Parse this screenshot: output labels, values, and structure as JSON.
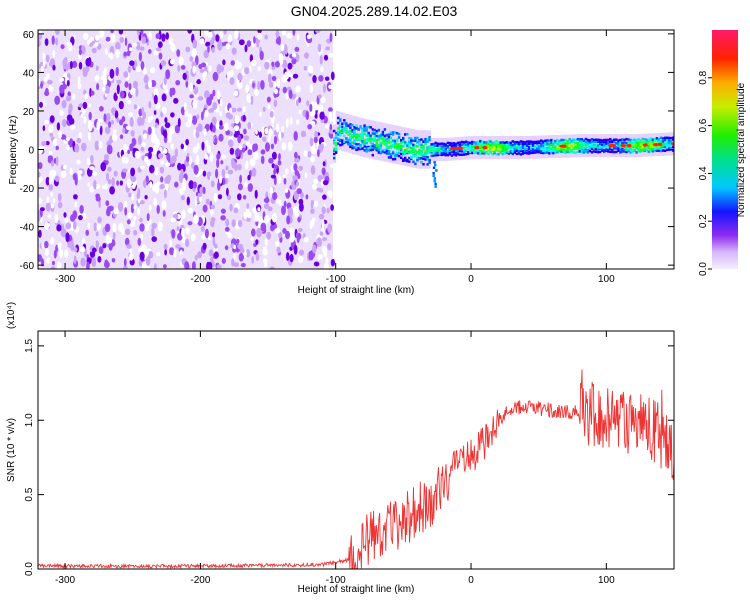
{
  "title": "GN04.2025.289.14.02.E03",
  "colors": {
    "snr_line": "#ee3333",
    "low_amp": "#6a00e0",
    "mid_amp": "#00c070",
    "high_amp": "#ff2030",
    "background": "#ffffff"
  },
  "chart_data": [
    {
      "type": "heatmap",
      "xlabel": "Height of straight line (km)",
      "ylabel": "Frequency (Hz)",
      "xlim": [
        -320,
        150
      ],
      "ylim": [
        -62,
        62
      ],
      "x_ticks": [
        -300,
        -200,
        -100,
        0,
        100
      ],
      "y_ticks": [
        -60,
        -40,
        -20,
        0,
        20,
        40,
        60
      ],
      "colorbar": {
        "label": "Normalized spectral amplitude",
        "range": [
          0,
          1
        ],
        "ticks": [
          "0.0",
          "0.2",
          "0.4",
          "0.6",
          "0.8"
        ],
        "colormap": "hsl-rainbow (white→violet→blue→cyan→green→yellow→red)"
      },
      "regions": [
        {
          "x_range": [
            -320,
            -102
          ],
          "frequency_range": [
            -62,
            62
          ],
          "content": "broadband noise",
          "amplitude_range": [
            0.0,
            0.15
          ]
        },
        {
          "x_range": [
            -102,
            150
          ],
          "content": "narrow signal band",
          "amplitude_range": [
            0.2,
            1.0
          ]
        }
      ],
      "ridge": [
        {
          "x": -100,
          "frequency": 10
        },
        {
          "x": -80,
          "frequency": 6
        },
        {
          "x": -60,
          "frequency": 3
        },
        {
          "x": -40,
          "frequency": 0
        },
        {
          "x": -20,
          "frequency": 0
        },
        {
          "x": 0,
          "frequency": 1
        },
        {
          "x": 40,
          "frequency": 1
        },
        {
          "x": 80,
          "frequency": 2
        },
        {
          "x": 120,
          "frequency": 2
        },
        {
          "x": 150,
          "frequency": 3
        }
      ]
    },
    {
      "type": "line",
      "xlabel": "Height of straight line (km)",
      "ylabel": "SNR (10 * v/v)",
      "y_scale_label": "(x10⁴)",
      "xlim": [
        -320,
        150
      ],
      "ylim": [
        0,
        1.6
      ],
      "x_ticks": [
        -300,
        -200,
        -100,
        0,
        100
      ],
      "y_ticks": [
        "0.0",
        "0.5",
        "1.0",
        "1.5"
      ],
      "series": [
        {
          "x": [
            -320,
            -200,
            -110,
            -85,
            -75,
            -60,
            -50,
            -40,
            -30,
            -20,
            -10,
            0,
            10,
            20,
            30,
            40,
            60,
            80,
            100,
            110,
            120,
            130,
            140,
            150
          ],
          "y": [
            0.02,
            0.02,
            0.03,
            0.07,
            0.22,
            0.27,
            0.32,
            0.4,
            0.45,
            0.55,
            0.7,
            0.75,
            0.85,
            1.0,
            1.08,
            1.09,
            1.07,
            1.05,
            1.03,
            1.0,
            0.98,
            0.95,
            0.9,
            0.75
          ]
        }
      ]
    }
  ]
}
